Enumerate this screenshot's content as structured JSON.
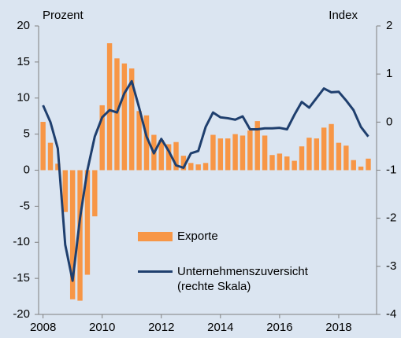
{
  "chart_data": {
    "type": "bar-line",
    "y_label": "Prozent",
    "y2_label": "Index",
    "x": [
      2008,
      2008.25,
      2008.5,
      2008.75,
      2009,
      2009.25,
      2009.5,
      2009.75,
      2010,
      2010.25,
      2010.5,
      2010.75,
      2011,
      2011.25,
      2011.5,
      2011.75,
      2012,
      2012.25,
      2012.5,
      2012.75,
      2013,
      2013.25,
      2013.5,
      2013.75,
      2014,
      2014.25,
      2014.5,
      2014.75,
      2015,
      2015.25,
      2015.5,
      2015.75,
      2016,
      2016.25,
      2016.5,
      2016.75,
      2017,
      2017.25,
      2017.5,
      2017.75,
      2018,
      2018.25,
      2018.5,
      2018.75,
      2019
    ],
    "series": [
      {
        "name": "Exporte",
        "type": "bar",
        "color": "#f79646",
        "values": [
          6.7,
          3.8,
          0.9,
          -5.8,
          -17.9,
          -18.1,
          -14.5,
          -6.4,
          9.0,
          17.6,
          15.5,
          14.8,
          14.1,
          8.2,
          7.6,
          4.9,
          4.2,
          3.6,
          3.9,
          2.0,
          1.0,
          0.8,
          1.0,
          4.9,
          4.4,
          4.4,
          5.0,
          4.8,
          5.5,
          6.8,
          4.8,
          2.1,
          2.3,
          1.9,
          1.3,
          3.3,
          4.5,
          4.4,
          5.9,
          6.4,
          3.8,
          3.4,
          1.4,
          0.5,
          1.6
        ]
      },
      {
        "name": "Unternehmenszuversicht (rechte Skala)",
        "type": "line",
        "axis": "y2",
        "color": "#1f3f6e",
        "values": [
          0.35,
          0.0,
          -0.55,
          -2.55,
          -3.3,
          -2.0,
          -1.0,
          -0.3,
          0.1,
          0.25,
          0.2,
          0.6,
          0.85,
          0.3,
          -0.3,
          -0.65,
          -0.35,
          -0.6,
          -0.9,
          -0.95,
          -0.65,
          -0.6,
          -0.1,
          0.2,
          0.1,
          0.08,
          0.05,
          0.12,
          -0.15,
          -0.15,
          -0.13,
          -0.13,
          -0.12,
          -0.15,
          0.15,
          0.42,
          0.3,
          0.5,
          0.7,
          0.62,
          0.63,
          0.45,
          0.25,
          -0.1,
          -0.3
        ]
      }
    ],
    "xlim": [
      2007.85,
      2019.28
    ],
    "xticks": [
      2008,
      2010,
      2012,
      2014,
      2016,
      2018
    ],
    "ylim": [
      -20,
      20
    ],
    "yticks": [
      -20,
      -15,
      -10,
      -5,
      0,
      5,
      10,
      15,
      20
    ],
    "y2lim": [
      -4,
      2
    ],
    "y2ticks": [
      -4,
      -3,
      -2,
      -1,
      0,
      1,
      2
    ]
  }
}
